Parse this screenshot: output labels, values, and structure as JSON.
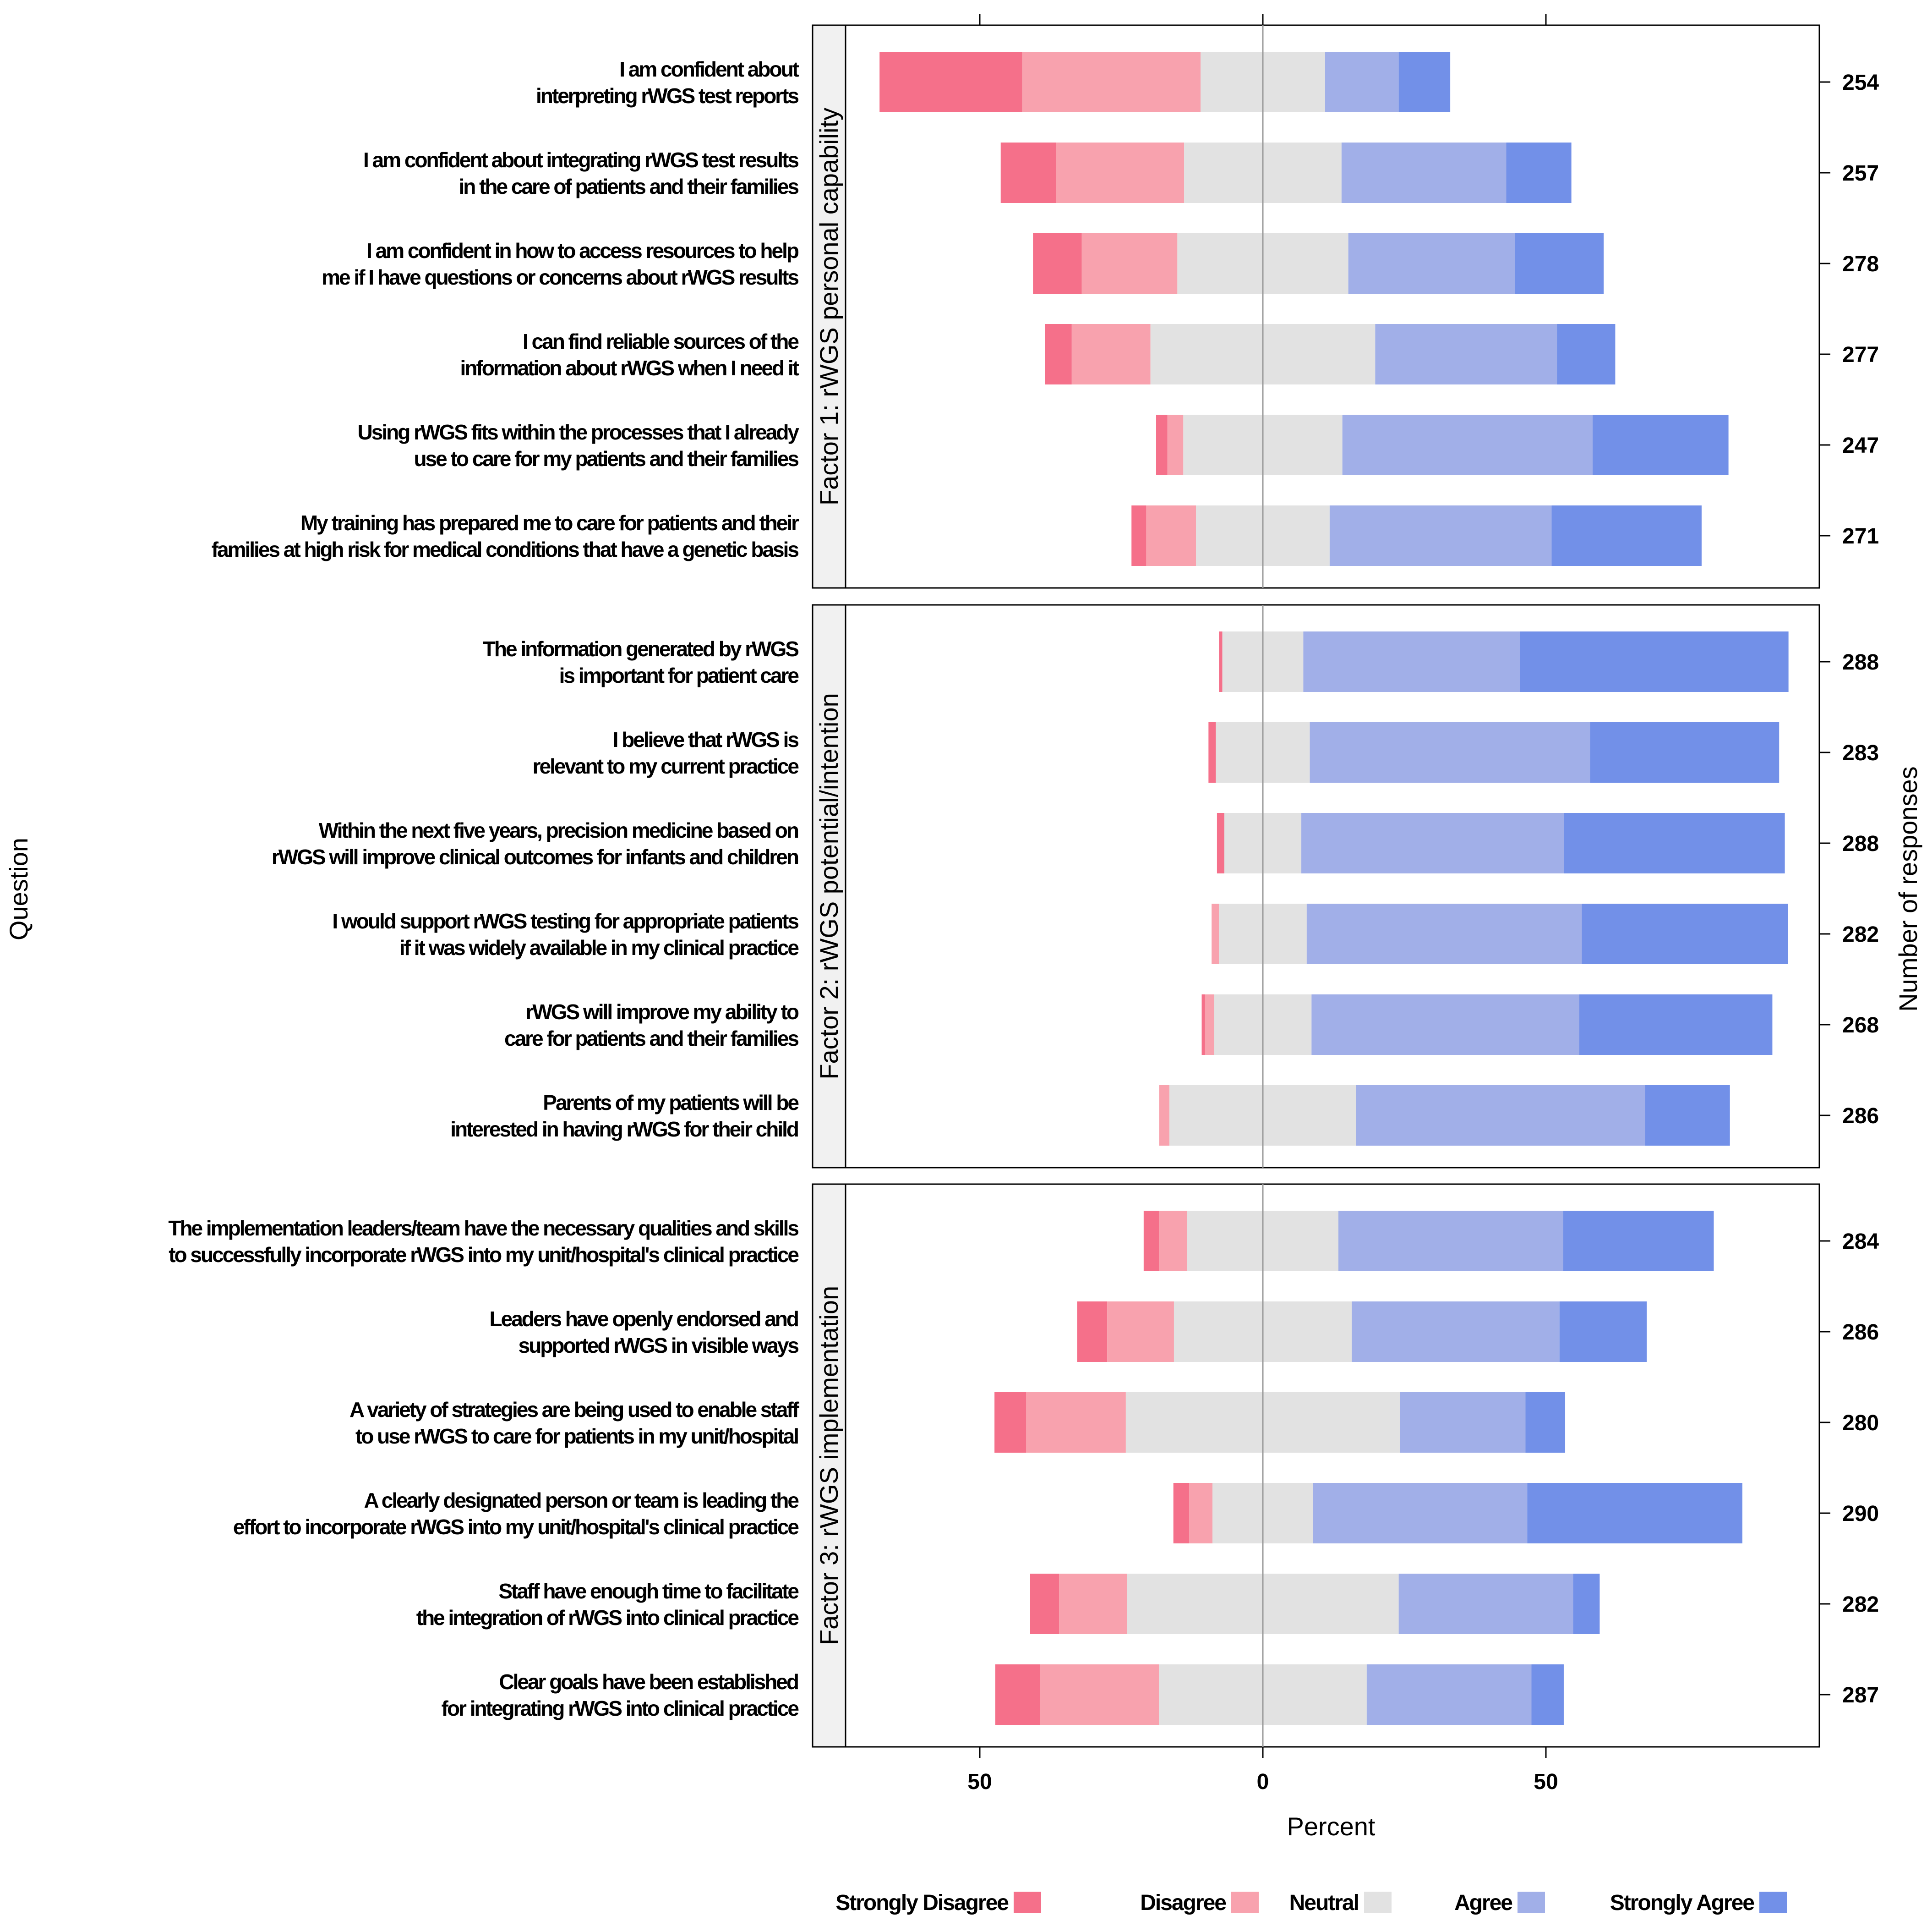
{
  "chart_data": {
    "type": "bar",
    "subtype": "diverging-stacked-horizontal",
    "xlabel": "Percent",
    "ylabel": "Question",
    "y2label": "Number of responses",
    "xlim": [
      -80,
      100
    ],
    "xticks": [
      -50,
      0,
      50
    ],
    "xtick_labels": [
      "50",
      "0",
      "50"
    ],
    "categories": [
      "Strongly Disagree",
      "Disagree",
      "Neutral",
      "Agree",
      "Strongly Agree"
    ],
    "colors": [
      "#F5708A",
      "#F8A2AE",
      "#E2E2E2",
      "#A1AFE8",
      "#7290E8"
    ],
    "legend_position": "bottom",
    "panels": [
      {
        "title": "Factor 1: rWGS personal capability",
        "questions": [
          {
            "lines": [
              "I am confident about",
              "interpreting rWGS test reports"
            ],
            "n": "254",
            "values": [
              25.2,
              31.5,
              22.0,
              13.0,
              9.1
            ]
          },
          {
            "lines": [
              "I am confident about integrating rWGS test results",
              "in the care of patients and their families"
            ],
            "n": "257",
            "values": [
              9.8,
              22.6,
              27.8,
              29.1,
              11.5
            ]
          },
          {
            "lines": [
              "I am confident in how to access resources to help",
              "me if I have questions or concerns about rWGS results"
            ],
            "n": "278",
            "values": [
              8.6,
              16.9,
              30.2,
              29.4,
              15.7
            ]
          },
          {
            "lines": [
              "I can find reliable sources of the",
              "information about rWGS when I need it"
            ],
            "n": "277",
            "values": [
              4.7,
              13.9,
              39.7,
              32.1,
              10.3
            ]
          },
          {
            "lines": [
              "Using rWGS fits within the processes that I already",
              "use to care for my patients and their families"
            ],
            "n": "247",
            "values": [
              2.0,
              2.8,
              28.1,
              44.2,
              24.0
            ]
          },
          {
            "lines": [
              "My training has prepared me to care for patients and their",
              "families at high risk for medical conditions that have a genetic basis"
            ],
            "n": "271",
            "values": [
              2.6,
              8.8,
              23.6,
              39.2,
              26.5
            ]
          }
        ]
      },
      {
        "title": "Factor 2: rWGS potential/intention",
        "questions": [
          {
            "lines": [
              "The information generated by rWGS",
              "is important for patient care"
            ],
            "n": "288",
            "values": [
              0.6,
              0.0,
              14.3,
              38.3,
              47.4
            ]
          },
          {
            "lines": [
              "I believe that rWGS is",
              "relevant to my current practice"
            ],
            "n": "283",
            "values": [
              1.3,
              0.0,
              16.6,
              49.5,
              33.4
            ]
          },
          {
            "lines": [
              "Within the next five years, precision medicine based on",
              "rWGS will improve clinical outcomes for infants and children"
            ],
            "n": "288",
            "values": [
              1.3,
              0.0,
              13.6,
              46.4,
              39.0
            ]
          },
          {
            "lines": [
              "I would support rWGS testing for appropriate patients",
              "if it was widely available in my clinical practice"
            ],
            "n": "282",
            "values": [
              0.0,
              1.3,
              15.5,
              48.6,
              36.4
            ]
          },
          {
            "lines": [
              "rWGS will improve my ability to",
              "care for patients and their families"
            ],
            "n": "268",
            "values": [
              0.6,
              1.6,
              17.2,
              47.3,
              34.1
            ]
          },
          {
            "lines": [
              "Parents of my patients will be",
              "interested in having rWGS for their child"
            ],
            "n": "286",
            "values": [
              0.0,
              1.8,
              33.0,
              51.0,
              15.0
            ]
          }
        ]
      },
      {
        "title": "Factor 3: rWGS implementation",
        "questions": [
          {
            "lines": [
              "The implementation leaders/team have the necessary qualities and skills",
              "to successfully incorporate rWGS into my unit/hospital's clinical practice"
            ],
            "n": "284",
            "values": [
              2.7,
              5.0,
              26.7,
              39.7,
              26.6
            ]
          },
          {
            "lines": [
              "Leaders have openly endorsed and",
              "supported rWGS in visible ways"
            ],
            "n": "286",
            "values": [
              5.3,
              11.8,
              31.4,
              36.7,
              15.4
            ]
          },
          {
            "lines": [
              "A variety of strategies are being used to enable staff",
              "to use rWGS to care for patients in my unit/hospital"
            ],
            "n": "280",
            "values": [
              5.6,
              17.6,
              48.4,
              22.2,
              7.0
            ]
          },
          {
            "lines": [
              "A clearly designated person or team is leading the",
              "effort to incorporate rWGS into my unit/hospital's clinical practice"
            ],
            "n": "290",
            "values": [
              2.8,
              4.1,
              17.8,
              37.8,
              38.0
            ]
          },
          {
            "lines": [
              "Staff have enough time to facilitate",
              "the integration of rWGS into clinical practice"
            ],
            "n": "282",
            "values": [
              5.1,
              12.0,
              48.0,
              30.8,
              4.7
            ]
          },
          {
            "lines": [
              "Clear goals have been established",
              "for integrating rWGS into clinical practice"
            ],
            "n": "287",
            "values": [
              7.9,
              21.0,
              36.7,
              29.1,
              5.7
            ]
          }
        ]
      }
    ]
  }
}
